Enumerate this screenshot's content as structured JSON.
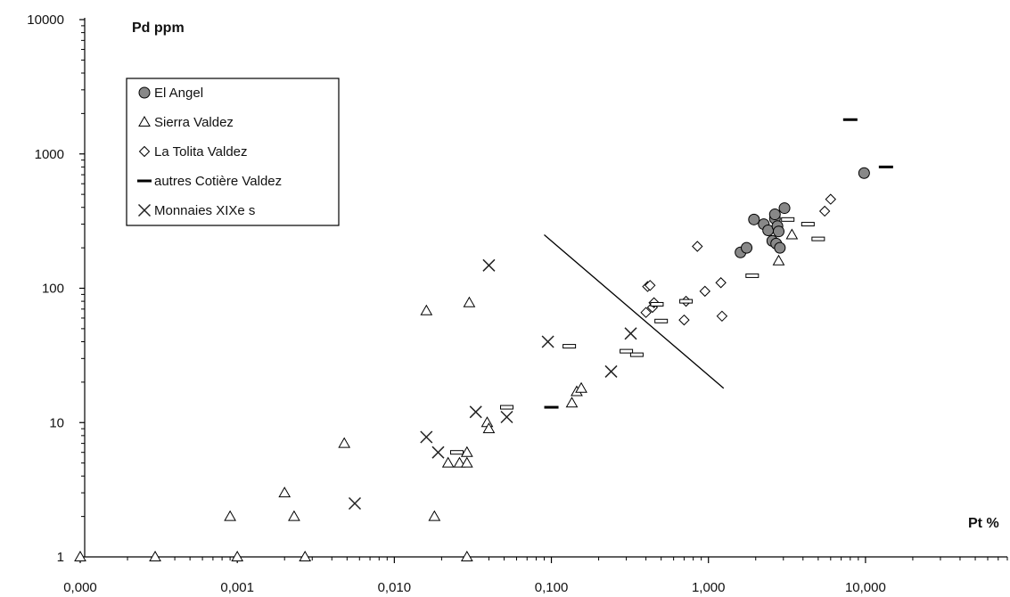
{
  "chart_data": {
    "type": "scatter",
    "title": "",
    "ylabel": "Pd ppm",
    "xlabel": "Pt %",
    "x_scale": "log",
    "y_scale": "log",
    "xlim": [
      0.0001,
      80
    ],
    "ylim": [
      1,
      10000
    ],
    "x_ticks": [
      0.0001,
      0.001,
      0.01,
      0.1,
      1,
      10
    ],
    "x_tick_labels": [
      "0,000",
      "0,001",
      "0,010",
      "0,100",
      "1,000",
      "10,000"
    ],
    "y_ticks": [
      1,
      10,
      100,
      1000,
      10000
    ],
    "y_tick_labels": [
      "1",
      "10",
      "100",
      "1000",
      "10000"
    ],
    "grid": false,
    "legend_position": "top-left",
    "series": [
      {
        "name": "El Angel",
        "marker": "circle",
        "color": "#888888",
        "points": [
          [
            1.6,
            185
          ],
          [
            1.75,
            200
          ],
          [
            1.95,
            325
          ],
          [
            2.25,
            300
          ],
          [
            2.4,
            270
          ],
          [
            2.55,
            225
          ],
          [
            2.65,
            330
          ],
          [
            2.65,
            355
          ],
          [
            2.75,
            290
          ],
          [
            2.7,
            215
          ],
          [
            2.8,
            265
          ],
          [
            2.85,
            200
          ],
          [
            3.05,
            395
          ],
          [
            9.8,
            720
          ]
        ]
      },
      {
        "name": "Sierra Valdez",
        "marker": "triangle",
        "color": "#ffffff",
        "points": [
          [
            0.0001,
            1
          ],
          [
            0.0003,
            1
          ],
          [
            0.0009,
            2
          ],
          [
            0.001,
            1
          ],
          [
            0.002,
            3
          ],
          [
            0.0023,
            2
          ],
          [
            0.0027,
            1
          ],
          [
            0.0048,
            7
          ],
          [
            0.016,
            68
          ],
          [
            0.018,
            2
          ],
          [
            0.022,
            5
          ],
          [
            0.026,
            5
          ],
          [
            0.029,
            5
          ],
          [
            0.029,
            6
          ],
          [
            0.029,
            1
          ],
          [
            0.03,
            78
          ],
          [
            0.039,
            10
          ],
          [
            0.04,
            9
          ],
          [
            0.135,
            14
          ],
          [
            0.145,
            17
          ],
          [
            0.155,
            18
          ],
          [
            2.8,
            160
          ],
          [
            3.4,
            250
          ]
        ]
      },
      {
        "name": "La Tolita Valdez",
        "marker": "diamond",
        "color": "#ffffff",
        "points": [
          [
            0.4,
            66
          ],
          [
            0.41,
            103
          ],
          [
            0.425,
            105
          ],
          [
            0.44,
            72
          ],
          [
            0.45,
            78
          ],
          [
            0.7,
            58
          ],
          [
            0.72,
            80
          ],
          [
            0.85,
            205
          ],
          [
            0.95,
            95
          ],
          [
            1.2,
            110
          ],
          [
            1.22,
            62
          ],
          [
            5.5,
            375
          ],
          [
            6.0,
            460
          ]
        ]
      },
      {
        "name": "autres Cotière Valdez",
        "marker": "dash",
        "color": "#ffffff",
        "points": [
          [
            0.025,
            6
          ],
          [
            0.052,
            13
          ],
          [
            0.13,
            37
          ],
          [
            0.3,
            34
          ],
          [
            0.35,
            32
          ],
          [
            0.47,
            76
          ],
          [
            0.5,
            57
          ],
          [
            0.72,
            80
          ],
          [
            1.9,
            124
          ],
          [
            3.2,
            325
          ],
          [
            4.3,
            300
          ],
          [
            5.0,
            233
          ],
          [
            0.1,
            13
          ],
          [
            8.0,
            1800
          ],
          [
            13.5,
            800
          ]
        ]
      },
      {
        "name": "Monnaies XIXe s",
        "marker": "x",
        "color": "#333333",
        "points": [
          [
            0.0056,
            2.5
          ],
          [
            0.016,
            7.8
          ],
          [
            0.019,
            6
          ],
          [
            0.033,
            12
          ],
          [
            0.04,
            148
          ],
          [
            0.052,
            11
          ],
          [
            0.095,
            40
          ],
          [
            0.24,
            24
          ],
          [
            0.32,
            46
          ]
        ]
      }
    ],
    "annotation_line": {
      "from": [
        0.09,
        250
      ],
      "to": [
        1.25,
        18
      ]
    }
  }
}
